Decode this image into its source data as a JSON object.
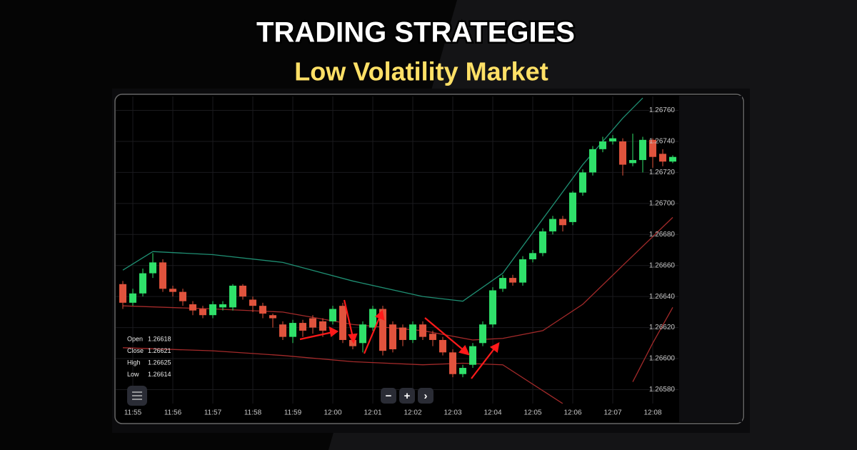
{
  "chart_data": {
    "type": "candlestick",
    "title": "TRADING STRATEGIES",
    "subtitle": "Low Volatility Market",
    "categories": [
      null,
      "11:55",
      null,
      null,
      null,
      "11:56",
      null,
      null,
      null,
      "11:57",
      null,
      null,
      null,
      "11:58",
      null,
      null,
      null,
      "11:59",
      null,
      null,
      null,
      "12:00",
      null,
      null,
      null,
      "12:01",
      null,
      null,
      null,
      "12:02",
      null,
      null,
      null,
      "12:03",
      null,
      null,
      null,
      "12:04",
      null,
      null,
      null,
      "12:05",
      null,
      null,
      null,
      "12:06",
      null,
      null,
      null,
      "12:07",
      null,
      null,
      null,
      "12:08",
      null,
      null
    ],
    "open": [
      1.26648,
      1.26636,
      1.26642,
      1.26655,
      1.26662,
      1.26645,
      1.26643,
      1.26635,
      1.26632,
      1.26628,
      1.26633,
      1.26633,
      1.26647,
      1.26638,
      1.26634,
      1.26628,
      1.26622,
      1.26614,
      1.26623,
      1.26626,
      1.26624,
      1.26624,
      1.26634,
      1.26612,
      1.2661,
      1.2662,
      1.26632,
      1.26622,
      1.2662,
      1.26612,
      1.26622,
      1.26616,
      1.26612,
      1.26604,
      1.2659,
      1.26596,
      1.2661,
      1.26622,
      1.26645,
      1.26652,
      1.26649,
      1.26664,
      1.26668,
      1.26682,
      1.2669,
      1.26688,
      1.26707,
      1.2672,
      1.26735,
      1.2674,
      1.2674,
      1.26726,
      1.26728,
      1.26741,
      1.26732,
      1.26727
    ],
    "high": [
      1.2665,
      1.26645,
      1.26658,
      1.26668,
      1.26664,
      1.26647,
      1.26645,
      1.26637,
      1.26634,
      1.26637,
      1.26637,
      1.26648,
      1.26648,
      1.2664,
      1.26636,
      1.26629,
      1.26624,
      1.26625,
      1.26625,
      1.26628,
      1.26626,
      1.26634,
      1.26636,
      1.26614,
      1.26624,
      1.26634,
      1.26634,
      1.26624,
      1.26622,
      1.26624,
      1.26624,
      1.26618,
      1.26614,
      1.26606,
      1.26596,
      1.2661,
      1.26624,
      1.26646,
      1.26654,
      1.26654,
      1.26666,
      1.2667,
      1.26684,
      1.26692,
      1.26692,
      1.26708,
      1.26722,
      1.26737,
      1.26743,
      1.26744,
      1.26742,
      1.26745,
      1.26743,
      1.26742,
      1.26735,
      1.26731
    ],
    "low": [
      1.26632,
      1.26634,
      1.2664,
      1.26652,
      1.26643,
      1.2664,
      1.26634,
      1.26628,
      1.26626,
      1.26626,
      1.26631,
      1.26631,
      1.26638,
      1.2663,
      1.26626,
      1.2662,
      1.26612,
      1.2661,
      1.26614,
      1.26616,
      1.26614,
      1.26622,
      1.2661,
      1.26606,
      1.26604,
      1.26618,
      1.26602,
      1.26604,
      1.26608,
      1.2661,
      1.26612,
      1.26608,
      1.26602,
      1.26588,
      1.26588,
      1.26594,
      1.26608,
      1.2662,
      1.26643,
      1.26647,
      1.26647,
      1.26662,
      1.26666,
      1.2668,
      1.26682,
      1.26686,
      1.26705,
      1.26718,
      1.26733,
      1.26738,
      1.26718,
      1.26724,
      1.2672,
      1.26723,
      1.26724,
      1.26726
    ],
    "close": [
      1.26636,
      1.26642,
      1.26655,
      1.26662,
      1.26645,
      1.26643,
      1.26637,
      1.26631,
      1.26628,
      1.26635,
      1.26635,
      1.26647,
      1.2664,
      1.26634,
      1.26629,
      1.26626,
      1.26614,
      1.26623,
      1.26618,
      1.2662,
      1.26618,
      1.26632,
      1.26612,
      1.26608,
      1.26622,
      1.26632,
      1.26605,
      1.26606,
      1.26612,
      1.26622,
      1.26614,
      1.26612,
      1.26604,
      1.2659,
      1.26594,
      1.26608,
      1.26622,
      1.26644,
      1.26652,
      1.26649,
      1.26664,
      1.26668,
      1.26682,
      1.2669,
      1.26686,
      1.26707,
      1.2672,
      1.26735,
      1.2674,
      1.26742,
      1.26725,
      1.26728,
      1.26741,
      1.2673,
      1.26727,
      1.2673
    ],
    "up_color": "#2fe06a",
    "down_color": "#e0533d",
    "bands": [
      {
        "color": "#1f8f73",
        "x": [
          0,
          3,
          9,
          16,
          23,
          30,
          34,
          38,
          42,
          46,
          50,
          52
        ],
        "values": [
          1.26657,
          1.26669,
          1.26667,
          1.26662,
          1.2665,
          1.2664,
          1.26637,
          1.26655,
          1.2669,
          1.26725,
          1.26755,
          1.26768
        ]
      },
      {
        "color": "#a32a2a",
        "x": [
          0,
          9,
          16,
          23,
          30,
          35,
          38,
          42,
          46,
          50,
          55
        ],
        "values": [
          1.26634,
          1.26632,
          1.2663,
          1.26622,
          1.26618,
          1.26612,
          1.26613,
          1.26618,
          1.26635,
          1.2666,
          1.26691
        ]
      },
      {
        "color": "#a32a2a",
        "x": [
          0,
          9,
          16,
          23,
          30,
          34,
          38,
          44,
          49,
          51,
          53,
          55
        ],
        "values": [
          1.26607,
          1.26605,
          1.26602,
          1.26598,
          1.26596,
          1.26597,
          1.26596,
          1.26571,
          null,
          1.26585,
          1.2661,
          1.26633
        ]
      }
    ],
    "ylim": [
      1.26571,
      1.26769
    ],
    "yticks": [
      {
        "value": 1.2658,
        "label": "1.26580"
      },
      {
        "value": 1.266,
        "label": "1.26600"
      },
      {
        "value": 1.2662,
        "label": "1.26620"
      },
      {
        "value": 1.2664,
        "label": "1.26640"
      },
      {
        "value": 1.2666,
        "label": "1.26660"
      },
      {
        "value": 1.2668,
        "label": "1.26680"
      },
      {
        "value": 1.267,
        "label": "1.26700"
      },
      {
        "value": 1.2672,
        "label": "1.26720"
      },
      {
        "value": 1.2674,
        "label": "1.26740"
      },
      {
        "value": 1.2676,
        "label": "1.26760"
      }
    ],
    "grid": true
  },
  "panel": [
    {
      "label": "Open",
      "value": "1.26618"
    },
    {
      "label": "Close",
      "value": "1.26621"
    },
    {
      "label": "High",
      "value": "1.26625"
    },
    {
      "label": "Low",
      "value": "1.26614"
    }
  ],
  "controls": [
    "−",
    "+",
    "›"
  ]
}
